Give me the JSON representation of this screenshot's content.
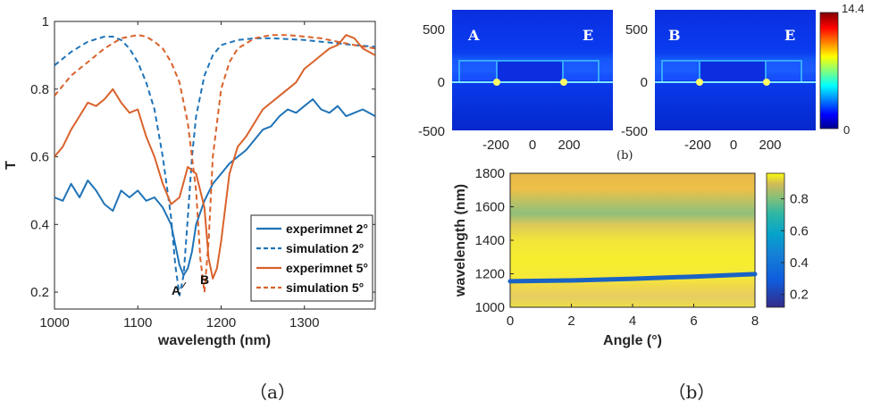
{
  "captions": {
    "a": "（a）",
    "b": "（b）",
    "b_small": "(b)"
  },
  "colors": {
    "blue": "#1f73b7",
    "orange": "#d9622b"
  },
  "chart_data": [
    {
      "type": "line",
      "panel": "a",
      "xlabel": "wavelength (nm)",
      "ylabel": "T",
      "xlim": [
        1000,
        1385
      ],
      "ylim": [
        0.15,
        1.0
      ],
      "xticks": [
        "1000",
        "1100",
        "1200",
        "1300"
      ],
      "yticks": [
        "0.2",
        "0.4",
        "0.6",
        "0.8",
        "1"
      ],
      "annotations": [
        "A",
        "B"
      ],
      "legend_position": "bottom-right",
      "series": [
        {
          "name": "experimnet 2°",
          "style": "solid",
          "color": "#1f73b7",
          "x": [
            1000,
            1010,
            1020,
            1030,
            1040,
            1050,
            1060,
            1070,
            1080,
            1090,
            1100,
            1110,
            1120,
            1130,
            1140,
            1150,
            1155,
            1160,
            1165,
            1170,
            1180,
            1190,
            1200,
            1210,
            1220,
            1230,
            1240,
            1250,
            1260,
            1270,
            1280,
            1290,
            1300,
            1310,
            1320,
            1330,
            1340,
            1350,
            1360,
            1370,
            1385
          ],
          "y": [
            0.48,
            0.47,
            0.52,
            0.48,
            0.53,
            0.5,
            0.46,
            0.44,
            0.5,
            0.48,
            0.5,
            0.47,
            0.48,
            0.45,
            0.4,
            0.28,
            0.25,
            0.27,
            0.32,
            0.4,
            0.47,
            0.52,
            0.55,
            0.58,
            0.6,
            0.62,
            0.65,
            0.68,
            0.69,
            0.72,
            0.74,
            0.73,
            0.75,
            0.77,
            0.74,
            0.73,
            0.75,
            0.72,
            0.73,
            0.74,
            0.72
          ]
        },
        {
          "name": "simulation 2°",
          "style": "dashed",
          "color": "#1f73b7",
          "x": [
            1000,
            1020,
            1040,
            1060,
            1070,
            1080,
            1090,
            1100,
            1110,
            1120,
            1130,
            1140,
            1145,
            1150,
            1155,
            1160,
            1165,
            1170,
            1180,
            1190,
            1200,
            1220,
            1240,
            1260,
            1280,
            1300,
            1320,
            1340,
            1360,
            1385
          ],
          "y": [
            0.87,
            0.91,
            0.94,
            0.955,
            0.955,
            0.945,
            0.92,
            0.88,
            0.82,
            0.74,
            0.6,
            0.42,
            0.28,
            0.19,
            0.25,
            0.42,
            0.6,
            0.72,
            0.84,
            0.9,
            0.93,
            0.945,
            0.95,
            0.95,
            0.948,
            0.945,
            0.94,
            0.935,
            0.93,
            0.925
          ]
        },
        {
          "name": "experimnet 5°",
          "style": "solid",
          "color": "#d9622b",
          "x": [
            1000,
            1010,
            1020,
            1030,
            1040,
            1050,
            1060,
            1070,
            1080,
            1090,
            1100,
            1110,
            1120,
            1130,
            1140,
            1150,
            1160,
            1170,
            1180,
            1185,
            1190,
            1195,
            1200,
            1210,
            1220,
            1230,
            1240,
            1250,
            1260,
            1270,
            1280,
            1290,
            1300,
            1310,
            1320,
            1330,
            1340,
            1350,
            1360,
            1370,
            1385
          ],
          "y": [
            0.6,
            0.63,
            0.68,
            0.72,
            0.76,
            0.75,
            0.77,
            0.8,
            0.76,
            0.73,
            0.74,
            0.66,
            0.6,
            0.52,
            0.46,
            0.48,
            0.57,
            0.55,
            0.45,
            0.3,
            0.24,
            0.27,
            0.35,
            0.55,
            0.63,
            0.66,
            0.7,
            0.74,
            0.76,
            0.78,
            0.8,
            0.82,
            0.86,
            0.88,
            0.9,
            0.92,
            0.93,
            0.96,
            0.95,
            0.92,
            0.9
          ]
        },
        {
          "name": "simulation 5°",
          "style": "dashed",
          "color": "#d9622b",
          "x": [
            1000,
            1020,
            1040,
            1060,
            1080,
            1100,
            1110,
            1120,
            1130,
            1140,
            1150,
            1160,
            1170,
            1175,
            1180,
            1185,
            1190,
            1200,
            1210,
            1220,
            1240,
            1260,
            1280,
            1300,
            1320,
            1340,
            1360,
            1385
          ],
          "y": [
            0.78,
            0.84,
            0.88,
            0.92,
            0.95,
            0.96,
            0.955,
            0.94,
            0.92,
            0.88,
            0.82,
            0.7,
            0.5,
            0.3,
            0.2,
            0.35,
            0.6,
            0.8,
            0.88,
            0.92,
            0.95,
            0.96,
            0.96,
            0.955,
            0.95,
            0.94,
            0.93,
            0.92
          ]
        }
      ]
    },
    {
      "type": "heatmap",
      "panel": "b-top",
      "maps": [
        {
          "left_label": "A",
          "right_label": "E"
        },
        {
          "left_label": "B",
          "right_label": "E"
        }
      ],
      "xticks": [
        "-200",
        "0",
        "200"
      ],
      "yticks": [
        "500",
        "0",
        "-500"
      ],
      "colorbar_labels": [
        "14.4",
        "0"
      ],
      "colorbar_range": [
        0,
        14.4
      ]
    },
    {
      "type": "heatmap",
      "panel": "b-bottom",
      "xlabel": "Angle (°)",
      "ylabel": "wavelength (nm)",
      "xlim": [
        0,
        8
      ],
      "ylim": [
        1000,
        1800
      ],
      "xticks": [
        "0",
        "2",
        "4",
        "6",
        "8"
      ],
      "yticks": [
        "1000",
        "1200",
        "1400",
        "1600",
        "1800"
      ],
      "colorbar_labels": [
        "0.8",
        "0.6",
        "0.4",
        "0.2"
      ],
      "colorbar_range": [
        0.12,
        0.96
      ],
      "resonance": {
        "angles": [
          0,
          2,
          4,
          6,
          8
        ],
        "wavelengths": [
          1155,
          1160,
          1170,
          1183,
          1198
        ]
      }
    }
  ]
}
